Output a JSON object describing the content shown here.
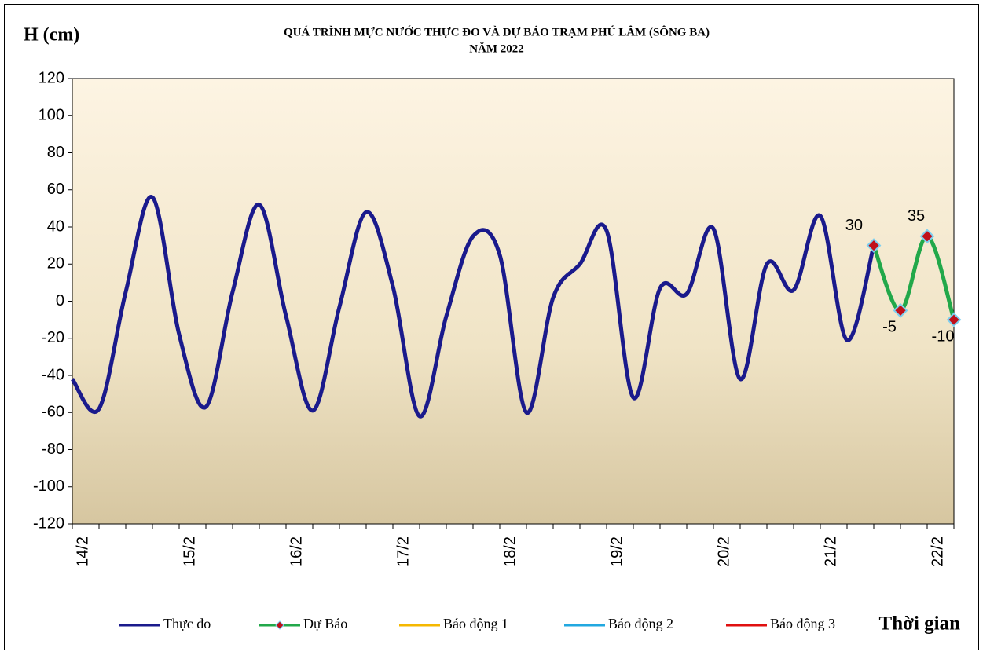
{
  "chart_data": {
    "type": "line",
    "title": "QUÁ TRÌNH MỰC NƯỚC THỰC ĐO VÀ DỰ BÁO TRẠM PHÚ LÂM (SÔNG BA)",
    "subtitle": "NĂM 2022",
    "y_label": "H (cm)",
    "x_label": "Thời gian",
    "categories": [
      "14/2",
      null,
      null,
      null,
      "15/2",
      null,
      null,
      null,
      "16/2",
      null,
      null,
      null,
      "17/2",
      null,
      null,
      null,
      "18/2",
      null,
      null,
      null,
      "19/2",
      null,
      null,
      null,
      "20/2",
      null,
      null,
      null,
      "21/2",
      null,
      null,
      null,
      "22/2",
      null
    ],
    "series": [
      {
        "name": "Thực đo",
        "color": "#1a1a8c",
        "values": [
          -42,
          -58,
          5,
          56,
          -18,
          -57,
          5,
          52,
          -8,
          -59,
          -3,
          48,
          8,
          -62,
          -8,
          35,
          25,
          -60,
          2,
          20,
          38,
          -52,
          7,
          4,
          39,
          -42,
          20,
          6,
          46,
          -21,
          30,
          null,
          null,
          null
        ]
      },
      {
        "name": "Dự Báo",
        "color": "#22a84a",
        "marker_color": "#c0101a",
        "values": [
          null,
          null,
          null,
          null,
          null,
          null,
          null,
          null,
          null,
          null,
          null,
          null,
          null,
          null,
          null,
          null,
          null,
          null,
          null,
          null,
          null,
          null,
          null,
          null,
          null,
          null,
          null,
          null,
          null,
          null,
          30,
          -5,
          35,
          -10
        ]
      },
      {
        "name": "Báo động 1",
        "color": "#f5b800"
      },
      {
        "name": "Báo động 2",
        "color": "#22a8e0"
      },
      {
        "name": "Báo động 3",
        "color": "#e01010"
      }
    ],
    "ylim": [
      -120,
      120
    ],
    "yticks": [
      -120,
      -100,
      -80,
      -60,
      -40,
      -20,
      0,
      20,
      40,
      60,
      80,
      100,
      120
    ],
    "legend": "bottom"
  }
}
